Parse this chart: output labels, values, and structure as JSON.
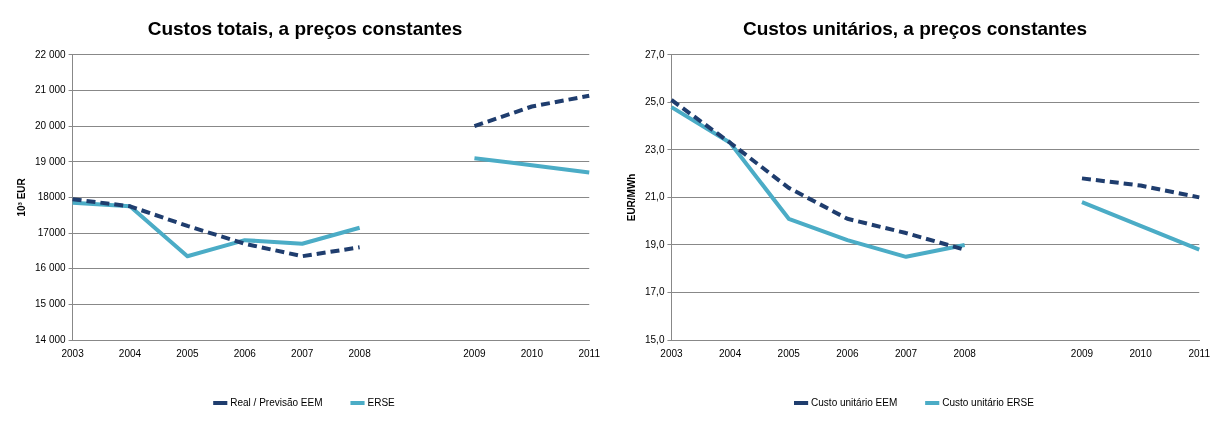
{
  "chart_data": [
    {
      "type": "line",
      "title": "Custos totais, a preços constantes",
      "ylabel": "10³ EUR",
      "categories": [
        "2003",
        "2004",
        "2005",
        "2006",
        "2007",
        "2008",
        null,
        "2009",
        "2010",
        "2011"
      ],
      "series": [
        {
          "name": "Real / Previsão EEM",
          "color": "#1f3d6e",
          "line_style": "dashed",
          "values": [
            17950,
            17750,
            17200,
            16700,
            16350,
            16600,
            null,
            20000,
            20550,
            20850
          ]
        },
        {
          "name": "ERSE",
          "color": "#4bacc6",
          "line_style": "solid",
          "values": [
            17850,
            17750,
            16350,
            16800,
            16700,
            17150,
            null,
            19100,
            18900,
            18700
          ]
        }
      ],
      "ylim": [
        14000,
        22000
      ],
      "yticks": [
        {
          "value": 14000,
          "label": "14 000"
        },
        {
          "value": 15000,
          "label": "15 000"
        },
        {
          "value": 16000,
          "label": "16 000"
        },
        {
          "value": 17000,
          "label": "17000"
        },
        {
          "value": 18000,
          "label": "18000"
        },
        {
          "value": 19000,
          "label": "19 000"
        },
        {
          "value": 20000,
          "label": "20 000"
        },
        {
          "value": 21000,
          "label": "21 000"
        },
        {
          "value": 22000,
          "label": "22 000"
        }
      ],
      "grid": "y",
      "legend": "bottom",
      "marker": "none"
    },
    {
      "type": "line",
      "title": "Custos unitários, a preços constantes",
      "ylabel": "EUR/MWh",
      "categories": [
        "2003",
        "2004",
        "2005",
        "2006",
        "2007",
        "2008",
        null,
        "2009",
        "2010",
        "2011"
      ],
      "series": [
        {
          "name": "Custo unitário EEM",
          "color": "#1f3d6e",
          "line_style": "dashed",
          "values": [
            25.1,
            23.3,
            21.4,
            20.1,
            19.5,
            18.8,
            null,
            21.8,
            21.5,
            21.0
          ]
        },
        {
          "name": "Custo unitário ERSE",
          "color": "#4bacc6",
          "line_style": "solid",
          "values": [
            24.8,
            23.3,
            20.1,
            19.2,
            18.5,
            19.0,
            null,
            20.8,
            19.8,
            18.8
          ]
        }
      ],
      "ylim": [
        15,
        27
      ],
      "yticks": [
        {
          "value": 15,
          "label": "15,0"
        },
        {
          "value": 17,
          "label": "17,0"
        },
        {
          "value": 19,
          "label": "19,0"
        },
        {
          "value": 21,
          "label": "21,0"
        },
        {
          "value": 23,
          "label": "23,0"
        },
        {
          "value": 25,
          "label": "25,0"
        },
        {
          "value": 27,
          "label": "27,0"
        }
      ],
      "grid": "y",
      "legend": "bottom",
      "marker": "none"
    }
  ]
}
